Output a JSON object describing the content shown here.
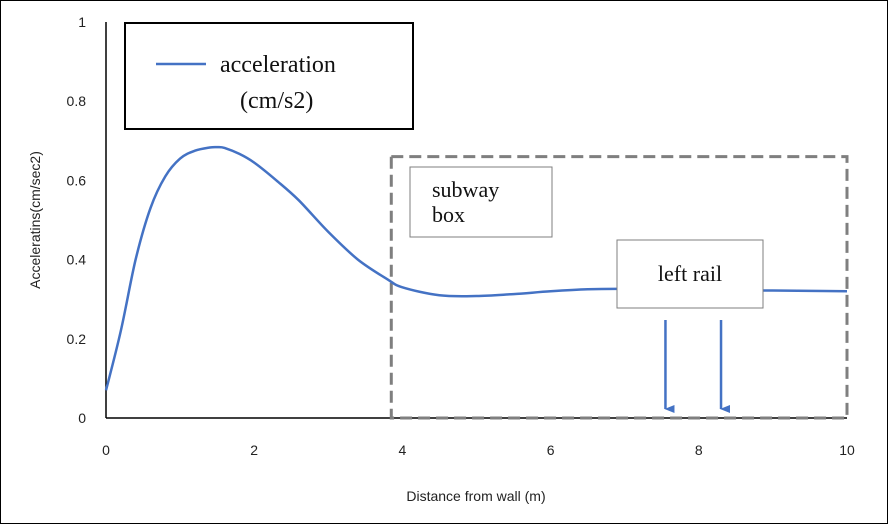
{
  "chart_data": {
    "type": "line",
    "title": "",
    "xlabel": "Distance from wall (m)",
    "ylabel": "Acceleratins(cm/sec2)",
    "xlim": [
      0,
      10
    ],
    "ylim": [
      0,
      1
    ],
    "x_ticks": [
      "0",
      "2",
      "4",
      "6",
      "8",
      "10"
    ],
    "y_ticks": [
      "0",
      "0.2",
      "0.4",
      "0.6",
      "0.8",
      "1"
    ],
    "grid": false,
    "legend": {
      "position": "top-left",
      "entries": [
        "acceleration",
        "(cm/s2)"
      ]
    },
    "series": [
      {
        "name": "acceleration (cm/s2)",
        "color": "#4472C4",
        "x": [
          0,
          0.2,
          0.4,
          0.6,
          0.8,
          1.0,
          1.2,
          1.4,
          1.5,
          1.6,
          1.8,
          2.0,
          2.3,
          2.6,
          3.0,
          3.4,
          3.8,
          4.0,
          4.5,
          5.0,
          5.5,
          6.0,
          6.5,
          7.0,
          7.5,
          8.0,
          8.5,
          9.0,
          9.5,
          10.0
        ],
        "values": [
          0.07,
          0.22,
          0.4,
          0.53,
          0.61,
          0.655,
          0.675,
          0.683,
          0.684,
          0.682,
          0.667,
          0.645,
          0.6,
          0.55,
          0.47,
          0.4,
          0.35,
          0.33,
          0.31,
          0.308,
          0.313,
          0.32,
          0.325,
          0.326,
          0.324,
          0.322,
          0.322,
          0.322,
          0.321,
          0.32
        ]
      }
    ],
    "annotations": [
      {
        "label": "subway box",
        "lines": [
          "subway",
          "box"
        ],
        "box_x": [
          3.85,
          10
        ],
        "box_y": [
          0,
          0.66
        ]
      },
      {
        "label": "left rail",
        "arrows_x": [
          7.55,
          8.3
        ]
      }
    ]
  }
}
